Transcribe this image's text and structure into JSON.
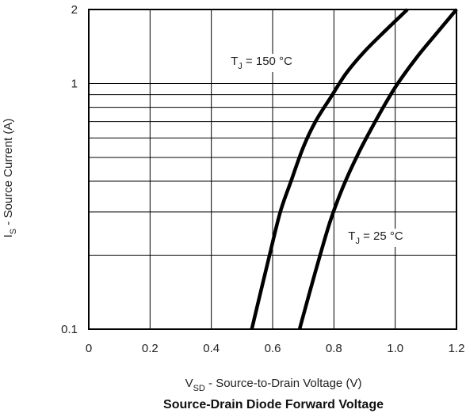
{
  "chart_data": {
    "type": "line",
    "title": "Source-Drain Diode Forward Voltage",
    "xlabel": {
      "main": "V",
      "sub": "SD",
      "rest": " - Source-to-Drain Voltage (V)"
    },
    "ylabel": {
      "main": "I",
      "sub": "S",
      "rest": " - Source Current (A)"
    },
    "xlim": [
      0,
      1.2
    ],
    "ylim": [
      0.1,
      2
    ],
    "yscale": "log",
    "grid": true,
    "x_ticks": [
      {
        "value": 0,
        "label": "0"
      },
      {
        "value": 0.2,
        "label": "0.2"
      },
      {
        "value": 0.4,
        "label": "0.4"
      },
      {
        "value": 0.6,
        "label": "0.6"
      },
      {
        "value": 0.8,
        "label": "0.8"
      },
      {
        "value": 1.0,
        "label": "1.0"
      },
      {
        "value": 1.2,
        "label": "1.2"
      }
    ],
    "y_ticks": [
      {
        "value": 0.1,
        "label": "0.1"
      },
      {
        "value": 1,
        "label": "1"
      },
      {
        "value": 2,
        "label": "2"
      }
    ],
    "y_gridlines": [
      0.2,
      0.3,
      0.4,
      0.5,
      0.6,
      0.7,
      0.8,
      0.9,
      1,
      2
    ],
    "series": [
      {
        "label": {
          "main": "T",
          "sub": "J",
          "rest": " = 150 °C"
        },
        "points": [
          [
            0.532,
            0.1
          ],
          [
            0.56,
            0.14
          ],
          [
            0.59,
            0.2
          ],
          [
            0.625,
            0.3
          ],
          [
            0.66,
            0.4
          ],
          [
            0.7,
            0.55
          ],
          [
            0.74,
            0.7
          ],
          [
            0.79,
            0.88
          ],
          [
            0.84,
            1.1
          ],
          [
            0.9,
            1.35
          ],
          [
            0.97,
            1.65
          ],
          [
            1.04,
            2.0
          ]
        ]
      },
      {
        "label": {
          "main": "T",
          "sub": "J",
          "rest": " = 25 °C"
        },
        "points": [
          [
            0.688,
            0.1
          ],
          [
            0.72,
            0.14
          ],
          [
            0.755,
            0.2
          ],
          [
            0.79,
            0.28
          ],
          [
            0.83,
            0.38
          ],
          [
            0.88,
            0.52
          ],
          [
            0.935,
            0.7
          ],
          [
            0.985,
            0.9
          ],
          [
            1.02,
            1.05
          ],
          [
            1.075,
            1.3
          ],
          [
            1.135,
            1.6
          ],
          [
            1.2,
            2.0
          ]
        ]
      }
    ]
  }
}
